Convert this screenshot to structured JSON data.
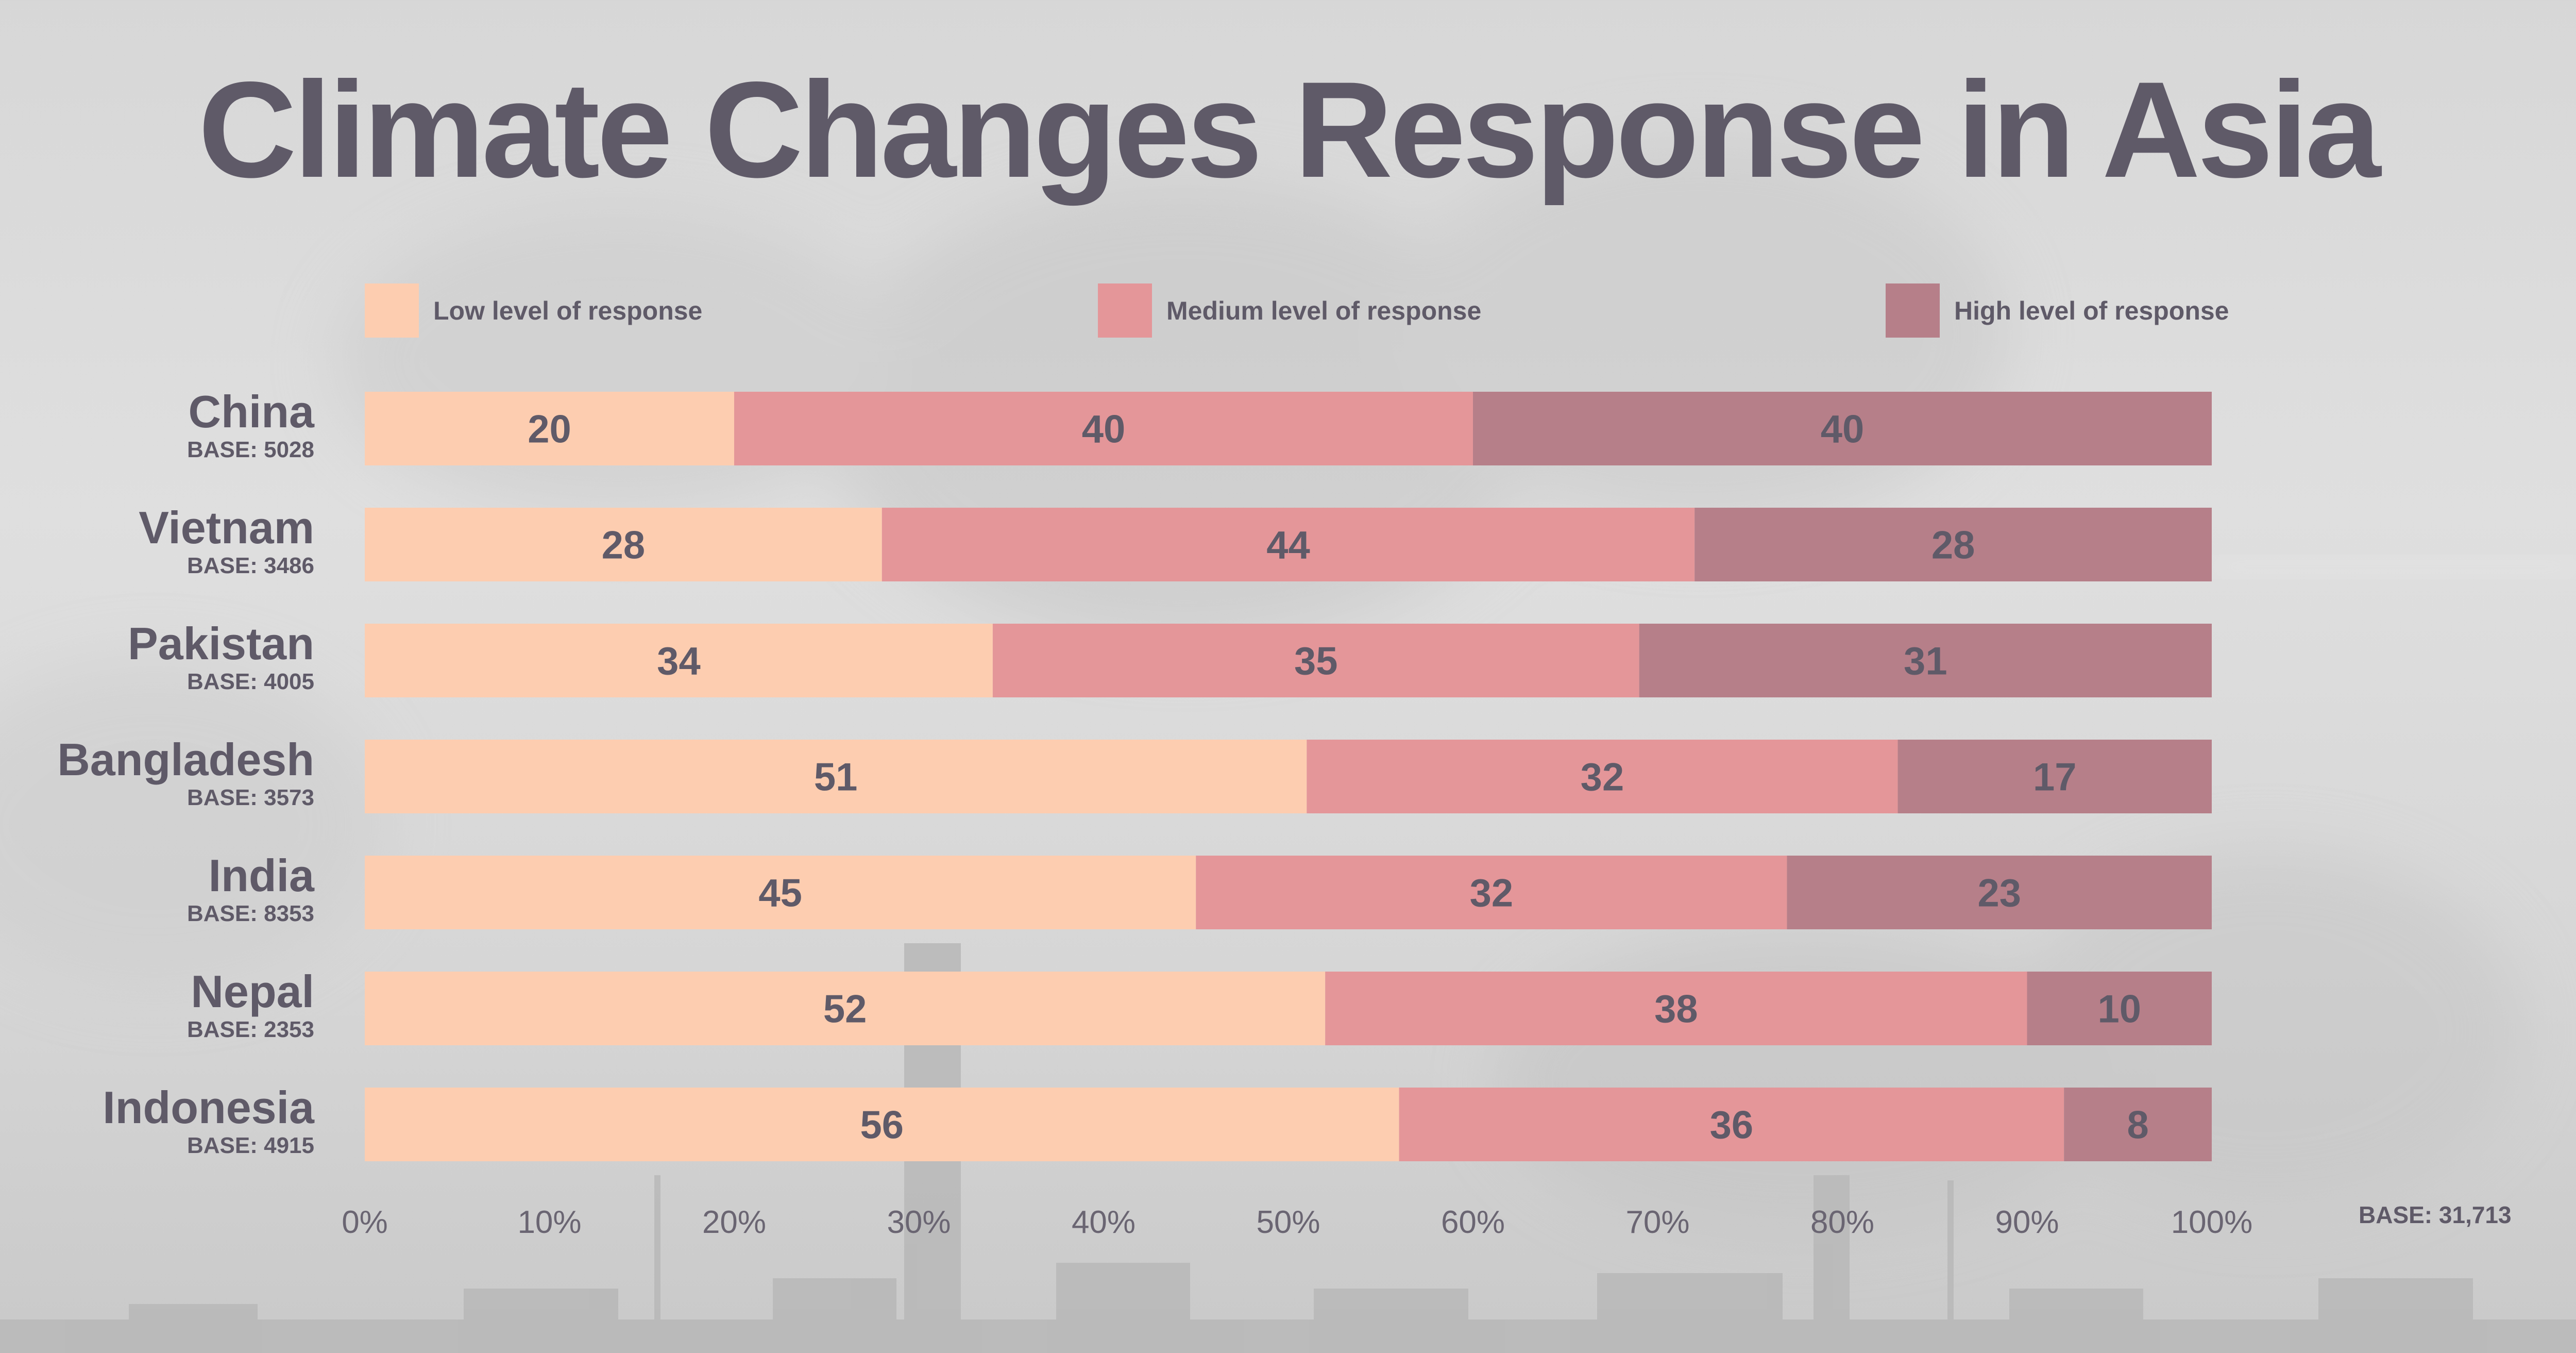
{
  "chart_data": {
    "type": "bar",
    "orientation": "horizontal",
    "stacked": true,
    "title": "Climate Changes Response in Asia",
    "categories": [
      "China",
      "Vietnam",
      "Pakistan",
      "Bangladesh",
      "India",
      "Nepal",
      "Indonesia"
    ],
    "bases": [
      "BASE: 5028",
      "BASE: 3486",
      "BASE: 4005",
      "BASE: 3573",
      "BASE: 8353",
      "BASE: 2353",
      "BASE: 4915"
    ],
    "series": [
      {
        "name": "Low level of response",
        "color": "#fdcdb0",
        "values": [
          20,
          28,
          34,
          51,
          45,
          52,
          56
        ]
      },
      {
        "name": "Medium level of response",
        "color": "#e49699",
        "values": [
          40,
          44,
          35,
          32,
          32,
          38,
          36
        ]
      },
      {
        "name": "High level of response",
        "color": "#b67f89",
        "values": [
          40,
          28,
          31,
          17,
          23,
          10,
          8
        ]
      }
    ],
    "xlim": [
      0,
      100
    ],
    "x_ticks": [
      "0%",
      "10%",
      "20%",
      "30%",
      "40%",
      "50%",
      "60%",
      "70%",
      "80%",
      "90%",
      "100%"
    ],
    "legend_position": "top",
    "grid": false,
    "total_base": "BASE: 31,713"
  }
}
